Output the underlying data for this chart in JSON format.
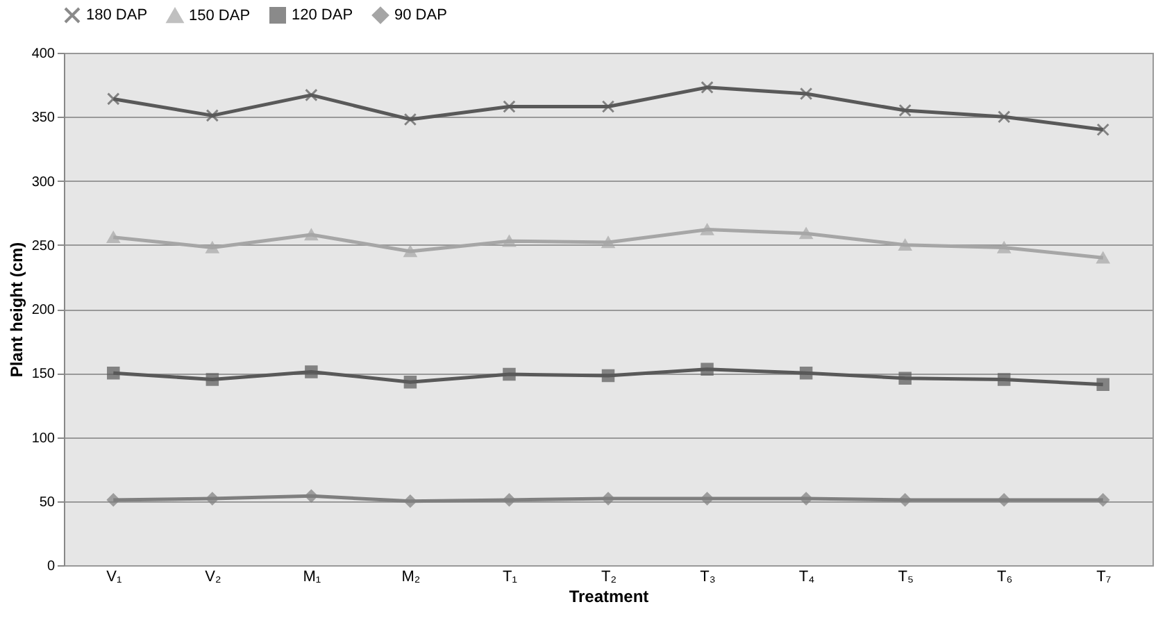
{
  "chart_data": {
    "type": "line",
    "xlabel": "Treatment",
    "ylabel": "Plant height (cm)",
    "categories": [
      "V₁",
      "V₂",
      "M₁",
      "M₂",
      "T₁",
      "T₂",
      "T₃",
      "T₄",
      "T₅",
      "T₆",
      "T₇"
    ],
    "series": [
      {
        "name": "180 DAP",
        "color": "#595959",
        "marker": "cross",
        "values": [
          364,
          351,
          367,
          348,
          358,
          358,
          373,
          368,
          355,
          350,
          340
        ]
      },
      {
        "name": "150 DAP",
        "color": "#a6a6a6",
        "marker": "triangle",
        "values": [
          256,
          248,
          258,
          245,
          253,
          252,
          262,
          259,
          250,
          248,
          240
        ]
      },
      {
        "name": "120 DAP",
        "color": "#595959",
        "marker": "square",
        "values": [
          150,
          145,
          151,
          143,
          149,
          148,
          153,
          150,
          146,
          145,
          141
        ]
      },
      {
        "name": "90 DAP",
        "color": "#7f7f7f",
        "marker": "diamond",
        "values": [
          51,
          52,
          54,
          50,
          51,
          52,
          52,
          52,
          51,
          51,
          51
        ]
      }
    ],
    "ylim": [
      0,
      400
    ],
    "yticks": [
      0,
      50,
      100,
      150,
      200,
      250,
      300,
      350,
      400
    ],
    "grid": "y",
    "legend": "top",
    "line_style": "solid"
  }
}
